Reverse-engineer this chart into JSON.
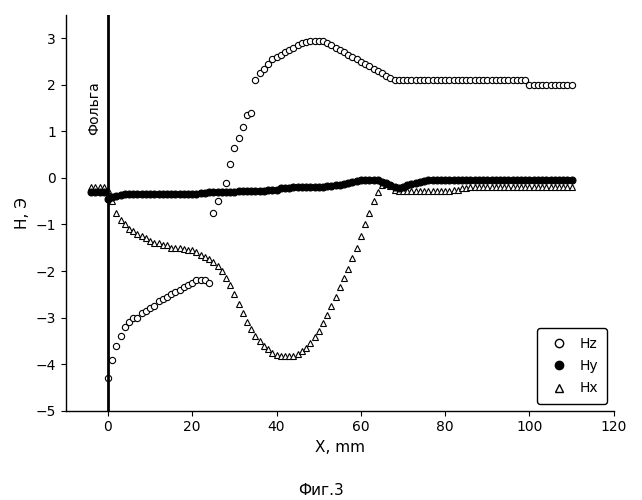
{
  "Hz_x": [
    0,
    1,
    2,
    3,
    4,
    5,
    6,
    7,
    8,
    9,
    10,
    11,
    12,
    13,
    14,
    15,
    16,
    17,
    18,
    19,
    20,
    21,
    22,
    23,
    24,
    25,
    26,
    27,
    28,
    29,
    30,
    31,
    32,
    33,
    34,
    35,
    36,
    37,
    38,
    39,
    40,
    41,
    42,
    43,
    44,
    45,
    46,
    47,
    48,
    49,
    50,
    51,
    52,
    53,
    54,
    55,
    56,
    57,
    58,
    59,
    60,
    61,
    62,
    63,
    64,
    65,
    66,
    67,
    68,
    69,
    70,
    71,
    72,
    73,
    74,
    75,
    76,
    77,
    78,
    79,
    80,
    81,
    82,
    83,
    84,
    85,
    86,
    87,
    88,
    89,
    90,
    91,
    92,
    93,
    94,
    95,
    96,
    97,
    98,
    99,
    100,
    101,
    102,
    103,
    104,
    105,
    106,
    107,
    108,
    109,
    110
  ],
  "Hz_y": [
    -4.3,
    -3.9,
    -3.6,
    -3.4,
    -3.2,
    -3.1,
    -3.0,
    -3.0,
    -2.9,
    -2.85,
    -2.8,
    -2.75,
    -2.65,
    -2.6,
    -2.55,
    -2.5,
    -2.45,
    -2.4,
    -2.35,
    -2.3,
    -2.25,
    -2.2,
    -2.2,
    -2.2,
    -2.25,
    -0.75,
    -0.5,
    -0.3,
    -0.1,
    0.3,
    0.65,
    0.85,
    1.1,
    1.35,
    1.4,
    2.1,
    2.25,
    2.35,
    2.45,
    2.55,
    2.6,
    2.65,
    2.7,
    2.75,
    2.8,
    2.85,
    2.9,
    2.93,
    2.95,
    2.95,
    2.95,
    2.95,
    2.9,
    2.85,
    2.8,
    2.75,
    2.7,
    2.65,
    2.6,
    2.55,
    2.5,
    2.45,
    2.4,
    2.35,
    2.3,
    2.25,
    2.2,
    2.15,
    2.1,
    2.1,
    2.1,
    2.1,
    2.1,
    2.1,
    2.1,
    2.1,
    2.1,
    2.1,
    2.1,
    2.1,
    2.1,
    2.1,
    2.1,
    2.1,
    2.1,
    2.1,
    2.1,
    2.1,
    2.1,
    2.1,
    2.1,
    2.1,
    2.1,
    2.1,
    2.1,
    2.1,
    2.1,
    2.1,
    2.1,
    2.1,
    2.0,
    2.0,
    2.0,
    2.0,
    2.0,
    2.0,
    2.0,
    2.0,
    2.0,
    2.0,
    2.0
  ],
  "Hy_x": [
    -4,
    -3,
    -2,
    -1,
    0,
    1,
    2,
    3,
    4,
    5,
    6,
    7,
    8,
    9,
    10,
    11,
    12,
    13,
    14,
    15,
    16,
    17,
    18,
    19,
    20,
    21,
    22,
    23,
    24,
    25,
    26,
    27,
    28,
    29,
    30,
    31,
    32,
    33,
    34,
    35,
    36,
    37,
    38,
    39,
    40,
    41,
    42,
    43,
    44,
    45,
    46,
    47,
    48,
    49,
    50,
    51,
    52,
    53,
    54,
    55,
    56,
    57,
    58,
    59,
    60,
    61,
    62,
    63,
    64,
    65,
    66,
    67,
    68,
    69,
    70,
    71,
    72,
    73,
    74,
    75,
    76,
    77,
    78,
    79,
    80,
    81,
    82,
    83,
    84,
    85,
    86,
    87,
    88,
    89,
    90,
    91,
    92,
    93,
    94,
    95,
    96,
    97,
    98,
    99,
    100,
    101,
    102,
    103,
    104,
    105,
    106,
    107,
    108,
    109,
    110
  ],
  "Hy_y": [
    -0.3,
    -0.3,
    -0.3,
    -0.3,
    -0.45,
    -0.4,
    -0.38,
    -0.36,
    -0.35,
    -0.35,
    -0.35,
    -0.35,
    -0.35,
    -0.35,
    -0.35,
    -0.35,
    -0.35,
    -0.35,
    -0.35,
    -0.35,
    -0.35,
    -0.35,
    -0.35,
    -0.35,
    -0.35,
    -0.35,
    -0.32,
    -0.32,
    -0.3,
    -0.3,
    -0.3,
    -0.3,
    -0.3,
    -0.3,
    -0.3,
    -0.28,
    -0.28,
    -0.28,
    -0.28,
    -0.28,
    -0.28,
    -0.28,
    -0.25,
    -0.25,
    -0.25,
    -0.22,
    -0.22,
    -0.22,
    -0.2,
    -0.2,
    -0.2,
    -0.2,
    -0.2,
    -0.2,
    -0.2,
    -0.2,
    -0.18,
    -0.18,
    -0.15,
    -0.15,
    -0.12,
    -0.1,
    -0.08,
    -0.06,
    -0.05,
    -0.05,
    -0.05,
    -0.05,
    -0.05,
    -0.08,
    -0.1,
    -0.15,
    -0.2,
    -0.22,
    -0.2,
    -0.15,
    -0.12,
    -0.1,
    -0.08,
    -0.06,
    -0.05,
    -0.05,
    -0.05,
    -0.05,
    -0.05,
    -0.05,
    -0.05,
    -0.05,
    -0.05,
    -0.05,
    -0.05,
    -0.05,
    -0.05,
    -0.05,
    -0.05,
    -0.05,
    -0.05,
    -0.05,
    -0.05,
    -0.05,
    -0.05,
    -0.05,
    -0.05,
    -0.05,
    -0.05,
    -0.05,
    -0.05,
    -0.05,
    -0.05,
    -0.05,
    -0.05,
    -0.05,
    -0.05,
    -0.05,
    -0.05
  ],
  "Hx_x": [
    -4,
    -3,
    -2,
    -1,
    0,
    1,
    2,
    3,
    4,
    5,
    6,
    7,
    8,
    9,
    10,
    11,
    12,
    13,
    14,
    15,
    16,
    17,
    18,
    19,
    20,
    21,
    22,
    23,
    24,
    25,
    26,
    27,
    28,
    29,
    30,
    31,
    32,
    33,
    34,
    35,
    36,
    37,
    38,
    39,
    40,
    41,
    42,
    43,
    44,
    45,
    46,
    47,
    48,
    49,
    50,
    51,
    52,
    53,
    54,
    55,
    56,
    57,
    58,
    59,
    60,
    61,
    62,
    63,
    64,
    65,
    66,
    67,
    68,
    69,
    70,
    71,
    72,
    73,
    74,
    75,
    76,
    77,
    78,
    79,
    80,
    81,
    82,
    83,
    84,
    85,
    86,
    87,
    88,
    89,
    90,
    91,
    92,
    93,
    94,
    95,
    96,
    97,
    98,
    99,
    100,
    101,
    102,
    103,
    104,
    105,
    106,
    107,
    108,
    109,
    110
  ],
  "Hx_y": [
    -0.2,
    -0.2,
    -0.2,
    -0.2,
    -0.25,
    -0.5,
    -0.75,
    -0.9,
    -1.0,
    -1.1,
    -1.15,
    -1.2,
    -1.25,
    -1.3,
    -1.35,
    -1.4,
    -1.4,
    -1.45,
    -1.45,
    -1.5,
    -1.5,
    -1.5,
    -1.52,
    -1.55,
    -1.55,
    -1.6,
    -1.65,
    -1.7,
    -1.75,
    -1.8,
    -1.9,
    -2.0,
    -2.15,
    -2.3,
    -2.5,
    -2.7,
    -2.9,
    -3.1,
    -3.25,
    -3.4,
    -3.5,
    -3.6,
    -3.68,
    -3.75,
    -3.8,
    -3.82,
    -3.83,
    -3.83,
    -3.82,
    -3.78,
    -3.72,
    -3.65,
    -3.55,
    -3.42,
    -3.28,
    -3.12,
    -2.95,
    -2.75,
    -2.55,
    -2.35,
    -2.15,
    -1.95,
    -1.72,
    -1.5,
    -1.25,
    -1.0,
    -0.75,
    -0.5,
    -0.3,
    -0.15,
    -0.12,
    -0.18,
    -0.25,
    -0.28,
    -0.28,
    -0.28,
    -0.28,
    -0.28,
    -0.28,
    -0.28,
    -0.28,
    -0.28,
    -0.28,
    -0.28,
    -0.28,
    -0.28,
    -0.25,
    -0.25,
    -0.22,
    -0.22,
    -0.2,
    -0.2,
    -0.2,
    -0.2,
    -0.2,
    -0.2,
    -0.2,
    -0.2,
    -0.2,
    -0.2,
    -0.2,
    -0.2,
    -0.2,
    -0.2,
    -0.2,
    -0.2,
    -0.2,
    -0.2,
    -0.2,
    -0.2,
    -0.2,
    -0.2,
    -0.2,
    -0.2,
    -0.2
  ],
  "ylabel": "Н, Э",
  "xlabel": "X, mm",
  "foil_label": "Фольга",
  "legend_hz": "Hz",
  "legend_hy": "Hy",
  "legend_hx": "Hx",
  "fig_label": "Фиг.3",
  "xlim": [
    -10,
    120
  ],
  "ylim": [
    -5,
    3.5
  ],
  "xticks": [
    0,
    20,
    40,
    60,
    80,
    100,
    120
  ],
  "yticks": [
    -5,
    -4,
    -3,
    -2,
    -1,
    0,
    1,
    2,
    3
  ],
  "foil_x": 0,
  "background_color": "#ffffff"
}
